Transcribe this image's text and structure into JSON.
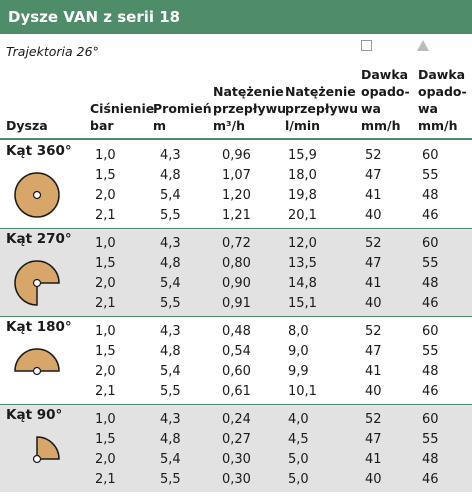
{
  "title": "Dysze VAN z serii 18",
  "trajectory": "Trajektoria 26°",
  "headers": {
    "nozzle": "Dysza",
    "pressure": [
      "Ciśnienie",
      "bar"
    ],
    "radius": [
      "Promień",
      "m"
    ],
    "flow_m3h": [
      "Natężenie",
      "przepływu",
      "m³/h"
    ],
    "flow_lmin": [
      "Natężenie",
      "przepływu",
      "l/min"
    ],
    "rate_square": [
      "Dawka",
      "opado-",
      "wa",
      "mm/h"
    ],
    "rate_triangle": [
      "Dawka",
      "opado-",
      "wa",
      "mm/h"
    ]
  },
  "colors": {
    "title_bg": "#4f8c6a",
    "nozzle_fill": "#d9a66a",
    "shaded_row": "#e2e2e2"
  },
  "groups": [
    {
      "label": "Kąt 360°",
      "angle": 360,
      "rows": [
        [
          "1,0",
          "4,3",
          "0,96",
          "15,9",
          "52",
          "60"
        ],
        [
          "1,5",
          "4,8",
          "1,07",
          "18,0",
          "47",
          "55"
        ],
        [
          "2,0",
          "5,4",
          "1,20",
          "19,8",
          "41",
          "48"
        ],
        [
          "2,1",
          "5,5",
          "1,21",
          "20,1",
          "40",
          "46"
        ]
      ]
    },
    {
      "label": "Kąt 270°",
      "angle": 270,
      "rows": [
        [
          "1,0",
          "4,3",
          "0,72",
          "12,0",
          "52",
          "60"
        ],
        [
          "1,5",
          "4,8",
          "0,80",
          "13,5",
          "47",
          "55"
        ],
        [
          "2,0",
          "5,4",
          "0,90",
          "14,8",
          "41",
          "48"
        ],
        [
          "2,1",
          "5,5",
          "0,91",
          "15,1",
          "40",
          "46"
        ]
      ]
    },
    {
      "label": "Kąt 180°",
      "angle": 180,
      "rows": [
        [
          "1,0",
          "4,3",
          "0,48",
          "8,0",
          "52",
          "60"
        ],
        [
          "1,5",
          "4,8",
          "0,54",
          "9,0",
          "47",
          "55"
        ],
        [
          "2,0",
          "5,4",
          "0,60",
          "9,9",
          "41",
          "48"
        ],
        [
          "2,1",
          "5,5",
          "0,61",
          "10,1",
          "40",
          "46"
        ]
      ]
    },
    {
      "label": "Kąt 90°",
      "angle": 90,
      "rows": [
        [
          "1,0",
          "4,3",
          "0,24",
          "4,0",
          "52",
          "60"
        ],
        [
          "1,5",
          "4,8",
          "0,27",
          "4,5",
          "47",
          "55"
        ],
        [
          "2,0",
          "5,4",
          "0,30",
          "5,0",
          "41",
          "48"
        ],
        [
          "2,1",
          "5,5",
          "0,30",
          "5,0",
          "40",
          "46"
        ]
      ]
    }
  ]
}
